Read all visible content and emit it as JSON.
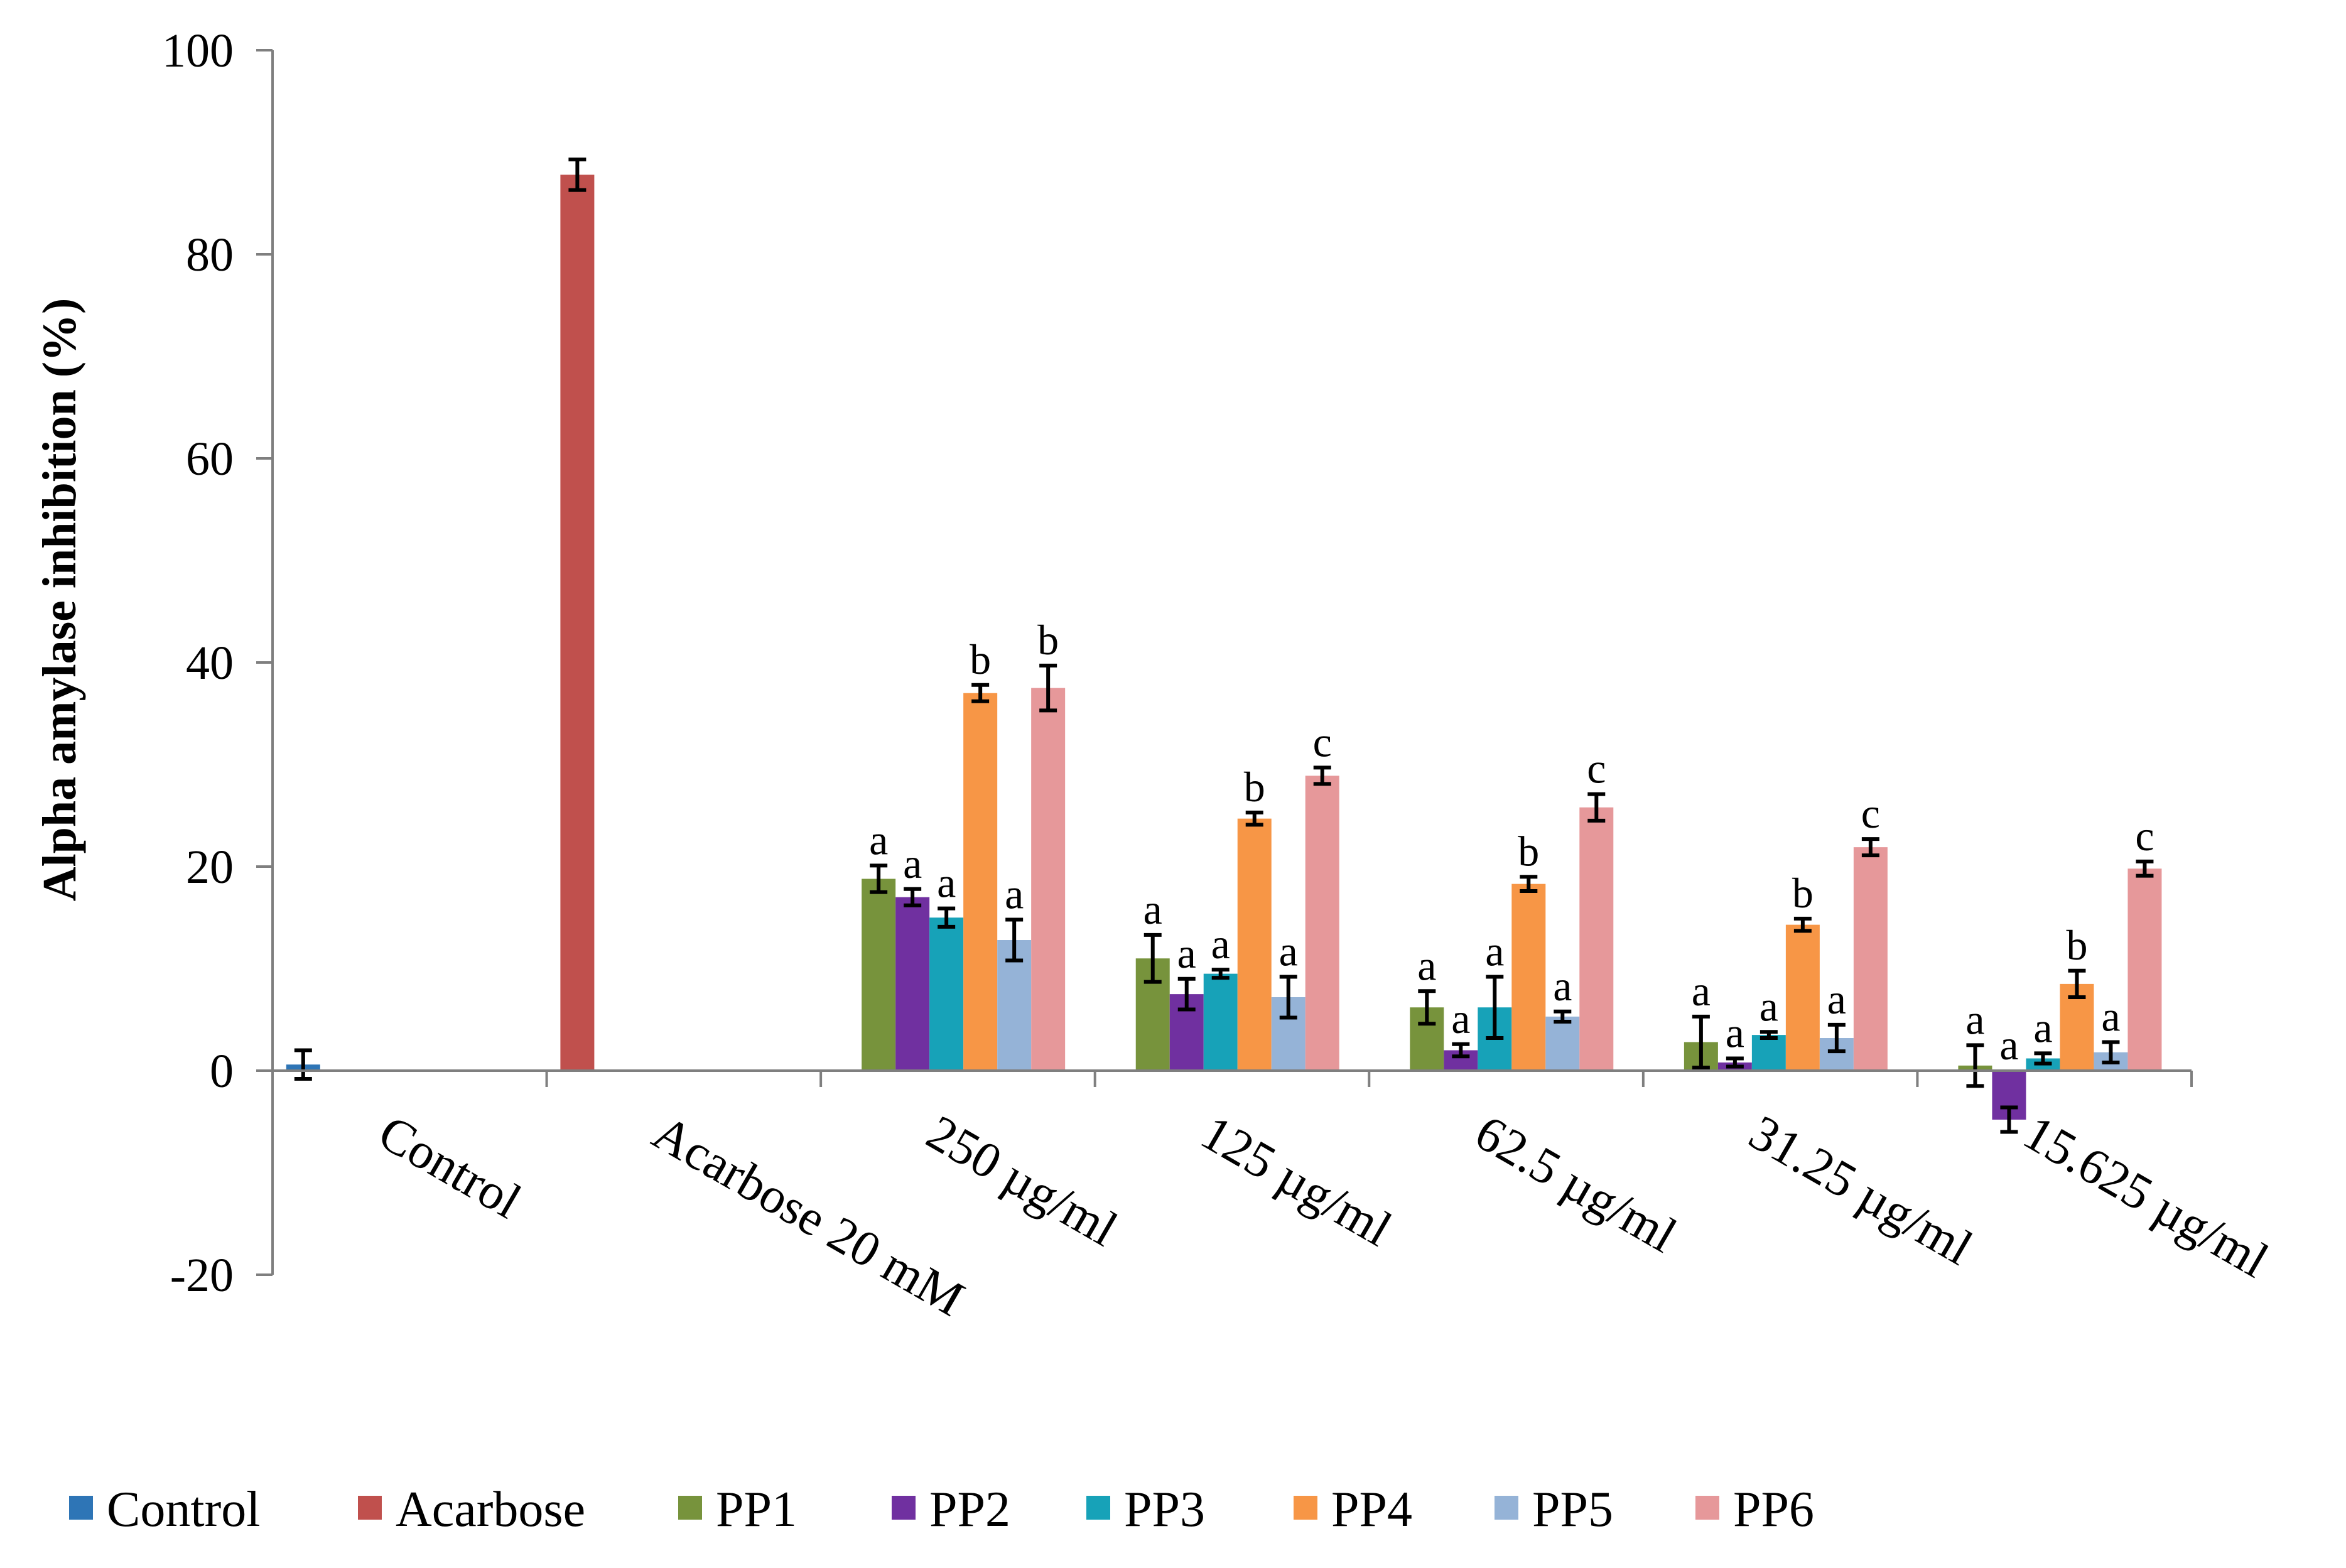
{
  "chart_data": {
    "type": "bar",
    "title": "",
    "xlabel": "",
    "ylabel": "Alpha amylase inhibition (%)",
    "ylim": [
      -20,
      100
    ],
    "yticks": [
      -20,
      0,
      20,
      40,
      60,
      80,
      100
    ],
    "categories": [
      "Control",
      "Acarbose 20 mM",
      "250 µg/ml",
      "125 µg/ml",
      "62.5 µg/ml",
      "31.25 µg/ml",
      "15.625 µg/ml"
    ],
    "grid": false,
    "legend_position": "bottom",
    "series": [
      {
        "name": "Control",
        "color": "#2e75b6",
        "values": [
          0.6,
          null,
          null,
          null,
          null,
          null,
          null
        ],
        "errors": [
          1.4,
          null,
          null,
          null,
          null,
          null,
          null
        ],
        "labels": [
          null,
          null,
          null,
          null,
          null,
          null,
          null
        ]
      },
      {
        "name": "Acarbose",
        "color": "#c0504d",
        "values": [
          null,
          87.8,
          null,
          null,
          null,
          null,
          null
        ],
        "errors": [
          null,
          1.5,
          null,
          null,
          null,
          null,
          null
        ],
        "labels": [
          null,
          null,
          null,
          null,
          null,
          null,
          null
        ]
      },
      {
        "name": "PP1",
        "color": "#77933c",
        "values": [
          null,
          null,
          18.8,
          11.0,
          6.2,
          2.8,
          0.5
        ],
        "errors": [
          null,
          null,
          1.3,
          2.3,
          1.6,
          2.5,
          2.0
        ],
        "labels": [
          null,
          null,
          "a",
          "a",
          "a",
          "a",
          "a"
        ]
      },
      {
        "name": "PP2",
        "color": "#7030a0",
        "values": [
          null,
          null,
          17.0,
          7.5,
          2.0,
          0.8,
          -4.8
        ],
        "errors": [
          null,
          null,
          0.8,
          1.5,
          0.6,
          0.4,
          1.2
        ],
        "labels": [
          null,
          null,
          "a",
          "a",
          "a",
          "a",
          "a"
        ]
      },
      {
        "name": "PP3",
        "color": "#17a2b8",
        "values": [
          null,
          null,
          15.0,
          9.5,
          6.2,
          3.5,
          1.2
        ],
        "errors": [
          null,
          null,
          0.9,
          0.4,
          3.0,
          0.3,
          0.5
        ],
        "labels": [
          null,
          null,
          "a",
          "a",
          "a",
          "a",
          "a"
        ]
      },
      {
        "name": "PP4",
        "color": "#f79646",
        "values": [
          null,
          null,
          37.0,
          24.7,
          18.3,
          14.3,
          8.5
        ],
        "errors": [
          null,
          null,
          0.8,
          0.6,
          0.7,
          0.6,
          1.3
        ],
        "labels": [
          null,
          null,
          "b",
          "b",
          "b",
          "b",
          "b"
        ]
      },
      {
        "name": "PP5",
        "color": "#95b3d7",
        "values": [
          null,
          null,
          12.8,
          7.2,
          5.3,
          3.2,
          1.8
        ],
        "errors": [
          null,
          null,
          2.0,
          2.0,
          0.5,
          1.3,
          1.0
        ],
        "labels": [
          null,
          null,
          "a",
          "a",
          "a",
          "a",
          "a"
        ]
      },
      {
        "name": "PP6",
        "color": "#e6989a",
        "values": [
          null,
          null,
          37.5,
          28.9,
          25.8,
          21.9,
          19.8
        ],
        "errors": [
          null,
          null,
          2.2,
          0.8,
          1.3,
          0.8,
          0.7
        ],
        "labels": [
          null,
          null,
          "b",
          "c",
          "c",
          "c",
          "c"
        ]
      }
    ]
  }
}
